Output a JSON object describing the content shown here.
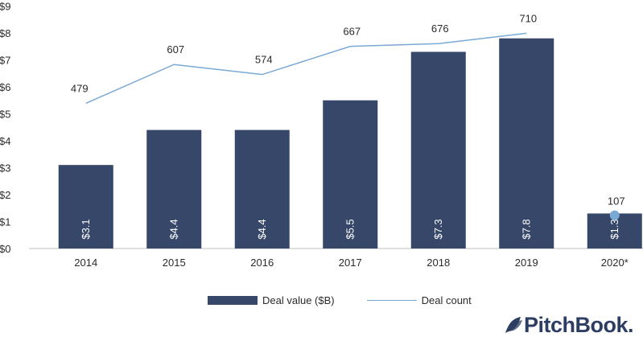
{
  "colors": {
    "bar": "#374769",
    "line": "#7aa9d6",
    "brand": "#2d3e63"
  },
  "chart_data": {
    "type": "bar",
    "categories": [
      "2014",
      "2015",
      "2016",
      "2017",
      "2018",
      "2019",
      "2020*"
    ],
    "series": [
      {
        "name": "Deal value ($B)",
        "type": "bar",
        "axis": "left",
        "values": [
          3.1,
          4.4,
          4.4,
          5.5,
          7.3,
          7.8,
          1.3
        ],
        "labels": [
          "$3.1",
          "$4.4",
          "$4.4",
          "$5.5",
          "$7.3",
          "$7.8",
          "$1.3"
        ]
      },
      {
        "name": "Deal count",
        "type": "line",
        "axis": "right",
        "values": [
          479,
          607,
          574,
          667,
          676,
          710,
          107
        ],
        "labels": [
          "479",
          "607",
          "574",
          "667",
          "676",
          "710",
          "107"
        ]
      }
    ],
    "y_ticks": [
      "$0",
      "$1",
      "$2",
      "$3",
      "$4",
      "$5",
      "$6",
      "$7",
      "$8",
      "$9"
    ],
    "ylim": [
      0,
      9
    ],
    "y2lim": [
      0,
      800
    ],
    "grid": false,
    "legend_position": "bottom"
  },
  "legend": {
    "bar_label": "Deal value ($B)",
    "line_label": "Deal count"
  },
  "branding": {
    "logo_text": "PitchBook."
  }
}
